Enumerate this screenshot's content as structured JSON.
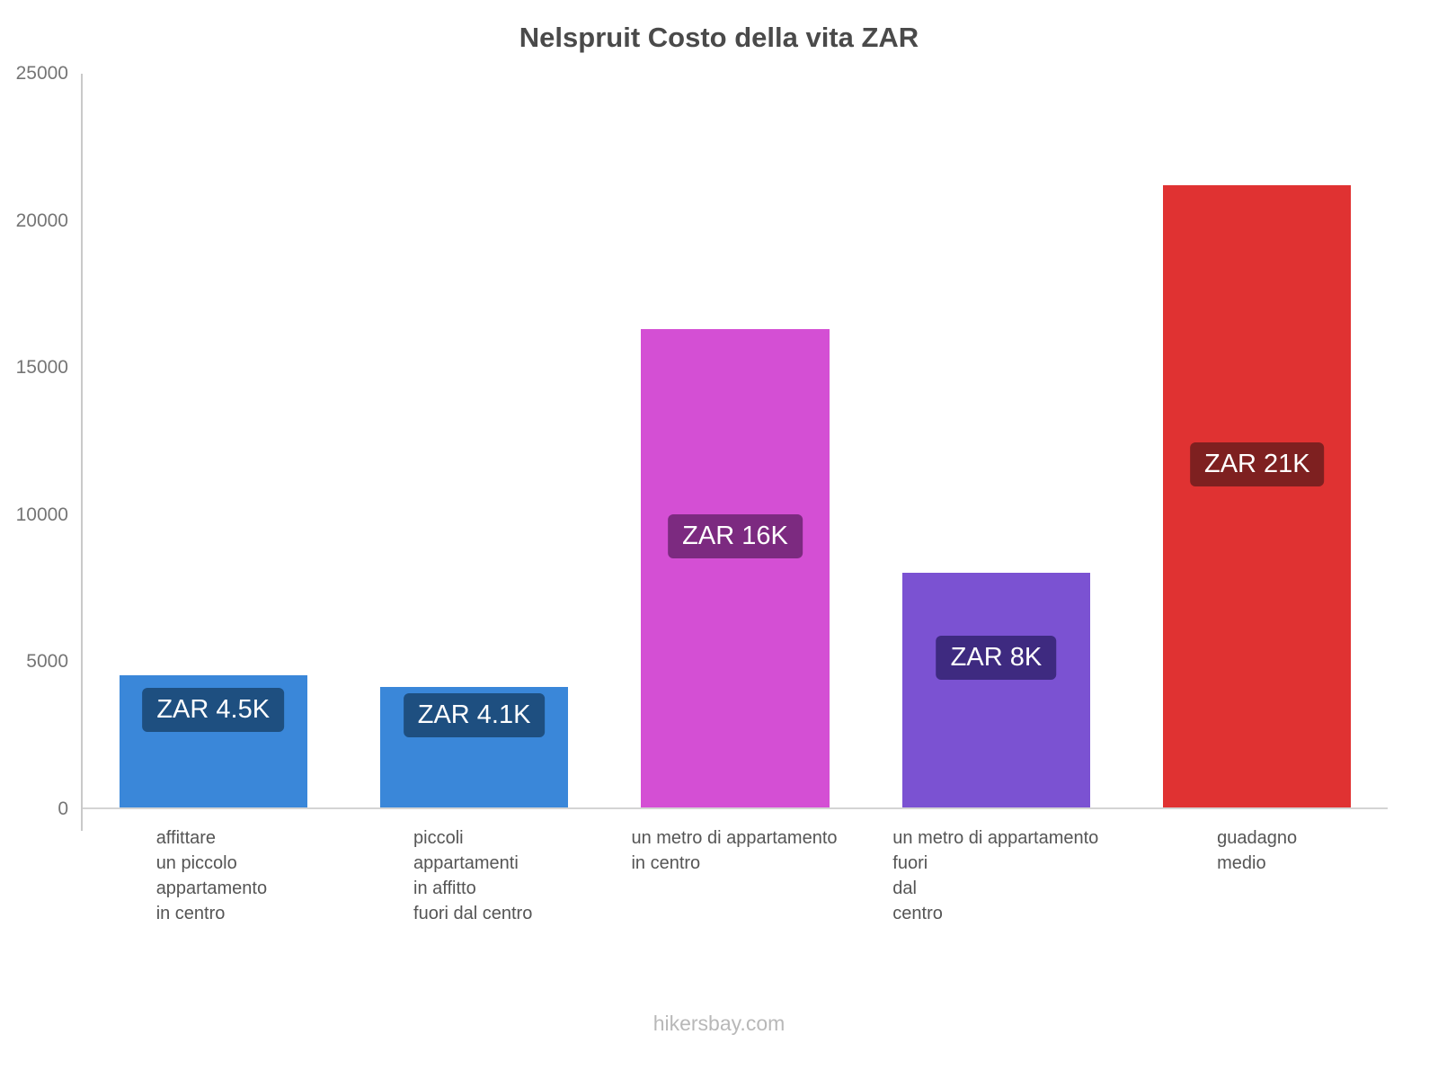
{
  "header": {
    "title": "Nelspruit Costo della vita ZAR"
  },
  "footer": {
    "watermark": "hikersbay.com"
  },
  "chart_data": {
    "type": "bar",
    "title": "Nelspruit Costo della vita ZAR",
    "currency": "ZAR",
    "categories": [
      "affittare un piccolo appartamento in centro",
      "piccoli appartamenti in affitto fuori dal centro",
      "un metro di appartamento in centro",
      "un metro di appartamento fuori dal centro",
      "guadagno medio"
    ],
    "category_lines": [
      [
        "affittare",
        "un piccolo",
        "appartamento",
        "in centro"
      ],
      [
        "piccoli",
        "appartamenti",
        "in affitto",
        "fuori dal centro"
      ],
      [
        "un metro di appartamento",
        "in centro"
      ],
      [
        "un metro di appartamento",
        "fuori",
        "dal",
        "centro"
      ],
      [
        "guadagno",
        "medio"
      ]
    ],
    "values": [
      4500,
      4100,
      16300,
      8000,
      21200
    ],
    "value_labels": [
      "ZAR 4.5K",
      "ZAR 4.1K",
      "ZAR 16K",
      "ZAR 8K",
      "ZAR 21K"
    ],
    "bar_colors": [
      "#3a87d9",
      "#3a87d9",
      "#d44fd4",
      "#7b52d2",
      "#e03232"
    ],
    "label_bg_colors": [
      "#1e4f80",
      "#1e4f80",
      "#7c2a80",
      "#3e2a80",
      "#7e2020"
    ],
    "ylim": [
      0,
      25000
    ],
    "yticks": [
      0,
      5000,
      10000,
      15000,
      20000,
      25000
    ],
    "grid": false,
    "legend": false
  }
}
